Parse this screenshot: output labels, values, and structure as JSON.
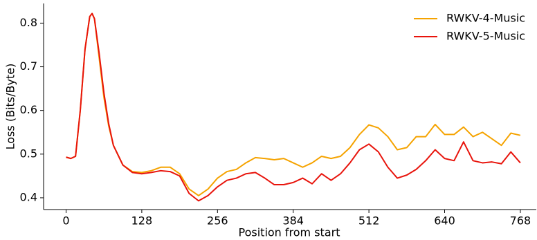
{
  "chart_data": {
    "type": "line",
    "x_label": "Position from start",
    "y_label": "Loss (Bits/Byte)",
    "x": [
      0,
      8,
      16,
      24,
      32,
      40,
      44,
      48,
      56,
      64,
      72,
      80,
      96,
      112,
      128,
      144,
      160,
      176,
      192,
      208,
      224,
      240,
      256,
      272,
      288,
      304,
      320,
      336,
      352,
      368,
      384,
      400,
      416,
      432,
      448,
      464,
      480,
      496,
      512,
      528,
      544,
      560,
      576,
      592,
      608,
      624,
      640,
      656,
      672,
      688,
      704,
      720,
      736,
      752,
      768
    ],
    "series": [
      {
        "name": "RWKV-4-Music",
        "color": "#f5a300",
        "values": [
          0.493,
          0.49,
          0.495,
          0.6,
          0.74,
          0.815,
          0.822,
          0.81,
          0.72,
          0.63,
          0.565,
          0.52,
          0.475,
          0.46,
          0.458,
          0.462,
          0.47,
          0.47,
          0.455,
          0.42,
          0.405,
          0.42,
          0.445,
          0.46,
          0.465,
          0.48,
          0.492,
          0.49,
          0.487,
          0.49,
          0.48,
          0.47,
          0.48,
          0.495,
          0.49,
          0.495,
          0.515,
          0.545,
          0.567,
          0.56,
          0.54,
          0.51,
          0.515,
          0.54,
          0.54,
          0.568,
          0.545,
          0.545,
          0.562,
          0.54,
          0.55,
          0.535,
          0.52,
          0.548,
          0.543
        ]
      },
      {
        "name": "RWKV-5-Music",
        "color": "#e8140c",
        "values": [
          0.493,
          0.49,
          0.495,
          0.6,
          0.74,
          0.815,
          0.822,
          0.81,
          0.73,
          0.64,
          0.57,
          0.52,
          0.475,
          0.458,
          0.455,
          0.458,
          0.462,
          0.46,
          0.45,
          0.41,
          0.393,
          0.405,
          0.425,
          0.44,
          0.445,
          0.455,
          0.458,
          0.445,
          0.43,
          0.43,
          0.435,
          0.445,
          0.432,
          0.455,
          0.44,
          0.455,
          0.48,
          0.51,
          0.523,
          0.505,
          0.47,
          0.445,
          0.452,
          0.465,
          0.485,
          0.51,
          0.49,
          0.485,
          0.528,
          0.485,
          0.48,
          0.482,
          0.478,
          0.505,
          0.48
        ]
      }
    ],
    "xlim": [
      -38,
      795
    ],
    "xticks": [
      0,
      128,
      256,
      384,
      512,
      640,
      768
    ],
    "ylim": [
      0.373,
      0.845
    ],
    "yticks": [
      0.4,
      0.5,
      0.6,
      0.7,
      0.8
    ],
    "legend": "upper right"
  }
}
